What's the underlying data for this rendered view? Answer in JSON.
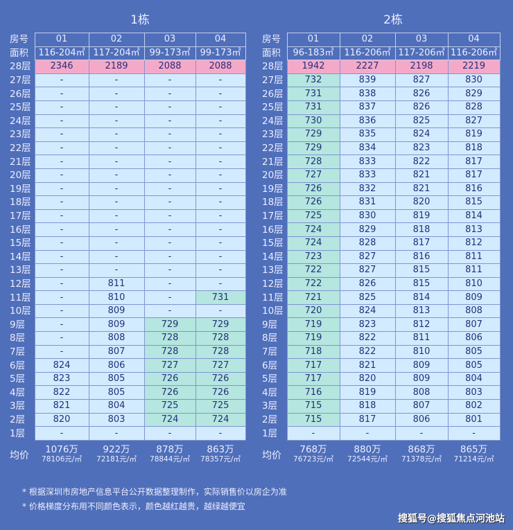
{
  "colors": {
    "background": "#4f6fba",
    "cell": "#d3ebff",
    "cheap_green": "#b5e6df",
    "expensive_pink": "#f5a9c8"
  },
  "header_labels": {
    "room": "房号",
    "area": "面积",
    "avg": "均价"
  },
  "buildings": [
    {
      "title": "1栋",
      "rooms": [
        "01",
        "02",
        "03",
        "04"
      ],
      "areas": [
        "116-204㎡",
        "117-204㎡",
        "99-173㎡",
        "99-173㎡"
      ],
      "top": {
        "floor": "28层",
        "cells": [
          "2346",
          "2189",
          "2088",
          "2088"
        ]
      },
      "rows": [
        {
          "floor": "27层",
          "cells": [
            "-",
            "-",
            "-",
            "-"
          ],
          "green": []
        },
        {
          "floor": "26层",
          "cells": [
            "-",
            "-",
            "-",
            "-"
          ],
          "green": []
        },
        {
          "floor": "25层",
          "cells": [
            "-",
            "-",
            "-",
            "-"
          ],
          "green": []
        },
        {
          "floor": "24层",
          "cells": [
            "-",
            "-",
            "-",
            "-"
          ],
          "green": []
        },
        {
          "floor": "23层",
          "cells": [
            "-",
            "-",
            "-",
            "-"
          ],
          "green": []
        },
        {
          "floor": "22层",
          "cells": [
            "-",
            "-",
            "-",
            "-"
          ],
          "green": []
        },
        {
          "floor": "21层",
          "cells": [
            "-",
            "-",
            "-",
            "-"
          ],
          "green": []
        },
        {
          "floor": "20层",
          "cells": [
            "-",
            "-",
            "-",
            "-"
          ],
          "green": []
        },
        {
          "floor": "19层",
          "cells": [
            "-",
            "-",
            "-",
            "-"
          ],
          "green": []
        },
        {
          "floor": "18层",
          "cells": [
            "-",
            "-",
            "-",
            "-"
          ],
          "green": []
        },
        {
          "floor": "17层",
          "cells": [
            "-",
            "-",
            "-",
            "-"
          ],
          "green": []
        },
        {
          "floor": "16层",
          "cells": [
            "-",
            "-",
            "-",
            "-"
          ],
          "green": []
        },
        {
          "floor": "15层",
          "cells": [
            "-",
            "-",
            "-",
            "-"
          ],
          "green": []
        },
        {
          "floor": "14层",
          "cells": [
            "-",
            "-",
            "-",
            "-"
          ],
          "green": []
        },
        {
          "floor": "13层",
          "cells": [
            "-",
            "-",
            "-",
            "-"
          ],
          "green": []
        },
        {
          "floor": "12层",
          "cells": [
            "-",
            "811",
            "-",
            "-"
          ],
          "green": []
        },
        {
          "floor": "11层",
          "cells": [
            "-",
            "810",
            "-",
            "731"
          ],
          "green": [
            3
          ]
        },
        {
          "floor": "10层",
          "cells": [
            "-",
            "809",
            "-",
            "-"
          ],
          "green": []
        },
        {
          "floor": "9层",
          "cells": [
            "-",
            "809",
            "729",
            "729"
          ],
          "green": [
            2,
            3
          ]
        },
        {
          "floor": "8层",
          "cells": [
            "-",
            "808",
            "728",
            "728"
          ],
          "green": [
            2,
            3
          ]
        },
        {
          "floor": "7层",
          "cells": [
            "-",
            "807",
            "728",
            "728"
          ],
          "green": [
            2,
            3
          ]
        },
        {
          "floor": "6层",
          "cells": [
            "824",
            "806",
            "727",
            "727"
          ],
          "green": [
            2,
            3
          ]
        },
        {
          "floor": "5层",
          "cells": [
            "823",
            "805",
            "726",
            "726"
          ],
          "green": [
            2,
            3
          ]
        },
        {
          "floor": "4层",
          "cells": [
            "822",
            "805",
            "726",
            "726"
          ],
          "green": [
            2,
            3
          ]
        },
        {
          "floor": "3层",
          "cells": [
            "821",
            "804",
            "725",
            "725"
          ],
          "green": [
            2,
            3
          ]
        },
        {
          "floor": "2层",
          "cells": [
            "820",
            "803",
            "724",
            "724"
          ],
          "green": [
            2,
            3
          ]
        },
        {
          "floor": "1层",
          "cells": [
            "-",
            "-",
            "-",
            "-"
          ],
          "green": []
        }
      ],
      "avg_total": [
        "1076万",
        "922万",
        "878万",
        "863万"
      ],
      "avg_unit": [
        "78106元/㎡",
        "72181元/㎡",
        "78844元/㎡",
        "78357元/㎡"
      ]
    },
    {
      "title": "2栋",
      "rooms": [
        "01",
        "02",
        "03",
        "04"
      ],
      "areas": [
        "96-183㎡",
        "116-206㎡",
        "117-206㎡",
        "116-206㎡"
      ],
      "top": {
        "floor": "28层",
        "cells": [
          "1942",
          "2227",
          "2198",
          "2219"
        ]
      },
      "rows": [
        {
          "floor": "27层",
          "cells": [
            "732",
            "839",
            "827",
            "830"
          ],
          "green": [
            0
          ]
        },
        {
          "floor": "26层",
          "cells": [
            "731",
            "838",
            "826",
            "829"
          ],
          "green": [
            0
          ]
        },
        {
          "floor": "25层",
          "cells": [
            "731",
            "837",
            "826",
            "828"
          ],
          "green": [
            0
          ]
        },
        {
          "floor": "24层",
          "cells": [
            "730",
            "836",
            "825",
            "827"
          ],
          "green": [
            0
          ]
        },
        {
          "floor": "23层",
          "cells": [
            "729",
            "835",
            "824",
            "819"
          ],
          "green": [
            0
          ]
        },
        {
          "floor": "22层",
          "cells": [
            "729",
            "834",
            "823",
            "818"
          ],
          "green": [
            0
          ]
        },
        {
          "floor": "21层",
          "cells": [
            "728",
            "833",
            "822",
            "817"
          ],
          "green": [
            0
          ]
        },
        {
          "floor": "20层",
          "cells": [
            "727",
            "833",
            "821",
            "817"
          ],
          "green": [
            0
          ]
        },
        {
          "floor": "19层",
          "cells": [
            "726",
            "832",
            "821",
            "816"
          ],
          "green": [
            0
          ]
        },
        {
          "floor": "18层",
          "cells": [
            "726",
            "831",
            "820",
            "815"
          ],
          "green": [
            0
          ]
        },
        {
          "floor": "17层",
          "cells": [
            "725",
            "830",
            "819",
            "814"
          ],
          "green": [
            0
          ]
        },
        {
          "floor": "16层",
          "cells": [
            "724",
            "829",
            "818",
            "813"
          ],
          "green": [
            0
          ]
        },
        {
          "floor": "15层",
          "cells": [
            "724",
            "828",
            "817",
            "812"
          ],
          "green": [
            0
          ]
        },
        {
          "floor": "14层",
          "cells": [
            "723",
            "827",
            "816",
            "811"
          ],
          "green": [
            0
          ]
        },
        {
          "floor": "13层",
          "cells": [
            "722",
            "827",
            "815",
            "811"
          ],
          "green": [
            0
          ]
        },
        {
          "floor": "12层",
          "cells": [
            "722",
            "826",
            "815",
            "810"
          ],
          "green": [
            0
          ]
        },
        {
          "floor": "11层",
          "cells": [
            "721",
            "825",
            "814",
            "809"
          ],
          "green": [
            0
          ]
        },
        {
          "floor": "10层",
          "cells": [
            "720",
            "824",
            "813",
            "808"
          ],
          "green": [
            0
          ]
        },
        {
          "floor": "9层",
          "cells": [
            "719",
            "823",
            "812",
            "807"
          ],
          "green": [
            0
          ]
        },
        {
          "floor": "8层",
          "cells": [
            "719",
            "822",
            "811",
            "806"
          ],
          "green": [
            0
          ]
        },
        {
          "floor": "7层",
          "cells": [
            "718",
            "822",
            "810",
            "805"
          ],
          "green": [
            0
          ]
        },
        {
          "floor": "6层",
          "cells": [
            "717",
            "821",
            "809",
            "805"
          ],
          "green": [
            0
          ]
        },
        {
          "floor": "5层",
          "cells": [
            "717",
            "820",
            "809",
            "804"
          ],
          "green": [
            0
          ]
        },
        {
          "floor": "4层",
          "cells": [
            "716",
            "819",
            "808",
            "803"
          ],
          "green": [
            0
          ]
        },
        {
          "floor": "3层",
          "cells": [
            "715",
            "818",
            "807",
            "802"
          ],
          "green": [
            0
          ]
        },
        {
          "floor": "2层",
          "cells": [
            "715",
            "817",
            "806",
            "801"
          ],
          "green": [
            0
          ]
        },
        {
          "floor": "1层",
          "cells": [
            "-",
            "-",
            "-",
            "-"
          ],
          "green": []
        }
      ],
      "avg_total": [
        "768万",
        "880万",
        "868万",
        "865万"
      ],
      "avg_unit": [
        "76723元/㎡",
        "72544元/㎡",
        "71378元/㎡",
        "71214元/㎡"
      ]
    }
  ],
  "notes": [
    "* 根据深圳市房地产信息平台公开数据整理制作，实际销售价以房企为准",
    "* 价格梯度分布用不同颜色表示，颜色越红越贵，越绿越便宜"
  ],
  "watermark": "搜狐号@搜狐焦点河池站"
}
